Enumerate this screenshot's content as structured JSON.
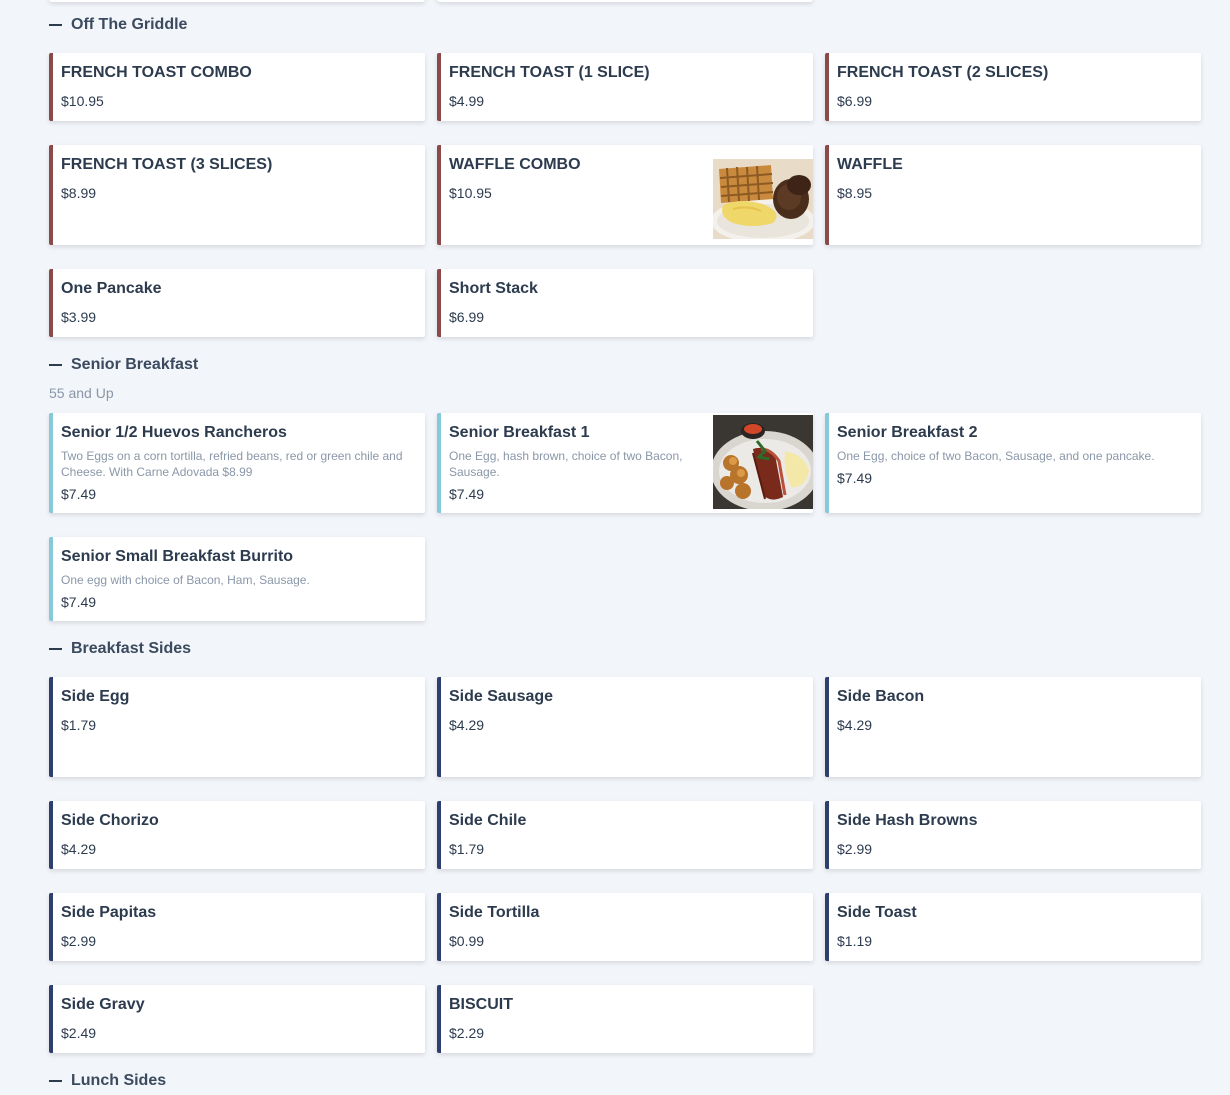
{
  "sections": {
    "griddle": {
      "title": "Off The Griddle",
      "items": [
        {
          "name": "FRENCH TOAST COMBO",
          "price": "$10.95"
        },
        {
          "name": "FRENCH TOAST (1 SLICE)",
          "price": "$4.99"
        },
        {
          "name": "FRENCH TOAST (2 SLICES)",
          "price": "$6.99"
        },
        {
          "name": "FRENCH TOAST (3 SLICES)",
          "price": "$8.99"
        },
        {
          "name": "WAFFLE COMBO",
          "price": "$10.95",
          "image": "waffle-combo-photo"
        },
        {
          "name": "WAFFLE",
          "price": "$8.95"
        },
        {
          "name": "One Pancake",
          "price": "$3.99"
        },
        {
          "name": "Short Stack",
          "price": "$6.99"
        }
      ]
    },
    "senior": {
      "title": "Senior Breakfast",
      "subtitle": "55 and Up",
      "items": [
        {
          "name": "Senior 1/2 Huevos Rancheros",
          "description": "Two Eggs on a corn tortilla, refried beans, red or green chile and Cheese. With Carne Adovada $8.99",
          "price": "$7.49"
        },
        {
          "name": "Senior Breakfast 1",
          "description": "One Egg, hash brown, choice of two Bacon, Sausage.",
          "price": "$7.49",
          "image": "senior-breakfast-photo"
        },
        {
          "name": "Senior Breakfast 2",
          "description": "One Egg, choice of two Bacon, Sausage, and one pancake.",
          "price": "$7.49"
        },
        {
          "name": "Senior Small Breakfast Burrito",
          "description": "One egg with choice of Bacon, Ham, Sausage.",
          "price": "$7.49"
        }
      ]
    },
    "sides": {
      "title": "Breakfast Sides",
      "items": [
        {
          "name": "Side Egg",
          "price": "$1.79"
        },
        {
          "name": "Side Sausage",
          "price": "$4.29"
        },
        {
          "name": "Side Bacon",
          "price": "$4.29"
        },
        {
          "name": "Side Chorizo",
          "price": "$4.29"
        },
        {
          "name": "Side Chile",
          "price": "$1.79"
        },
        {
          "name": "Side Hash Browns",
          "price": "$2.99"
        },
        {
          "name": "Side Papitas",
          "price": "$2.99"
        },
        {
          "name": "Side Tortilla",
          "price": "$0.99"
        },
        {
          "name": "Side Toast",
          "price": "$1.19"
        },
        {
          "name": "Side Gravy",
          "price": "$2.49"
        },
        {
          "name": "BISCUIT",
          "price": "$2.29"
        }
      ]
    },
    "lunch": {
      "title": "Lunch Sides"
    }
  },
  "colors": {
    "griddle_accent": "#8b4a4a",
    "senior_accent": "#86c9d9",
    "sides_accent": "#2c3f6e"
  }
}
